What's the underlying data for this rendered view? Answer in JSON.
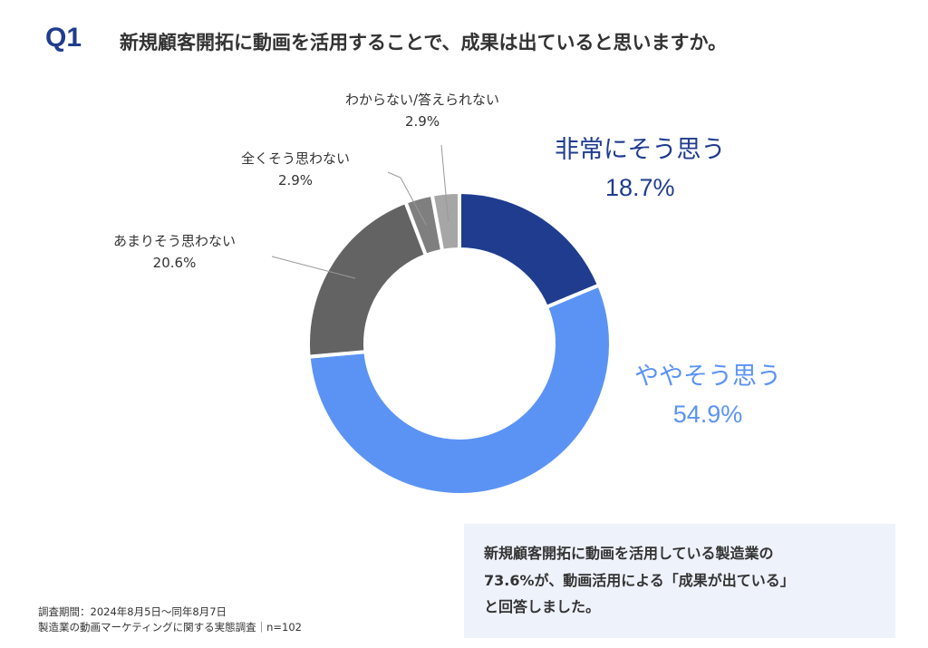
{
  "header": {
    "q_label": "Q1",
    "title": "新規顧客開拓に動画を活用することで、成果は出ていると思いますか。"
  },
  "chart_data": {
    "type": "pie",
    "donut": true,
    "categories": [
      "非常にそう思う",
      "ややそう思う",
      "あまりそう思わない",
      "全くそう思わない",
      "わからない/答えられない"
    ],
    "values": [
      18.7,
      54.9,
      20.6,
      2.9,
      2.9
    ],
    "value_labels": [
      "18.7%",
      "54.9%",
      "20.6%",
      "2.9%",
      "2.9%"
    ],
    "colors": [
      "#1f3c8f",
      "#5b93f5",
      "#636363",
      "#7f7f7f",
      "#a6a6a6"
    ],
    "label_colors": [
      "#1f3c8f",
      "#5b93f5",
      "#333333",
      "#333333",
      "#333333"
    ],
    "start": "12 o'clock",
    "direction": "clockwise"
  },
  "callout": {
    "lines": [
      "新規顧客開拓に動画を活用している製造業の",
      "73.6%が、動画活用による「成果が出ている」",
      "と回答しました。"
    ]
  },
  "footnote": {
    "lines": [
      "調査期間：2024年8月5日〜同年8月7日",
      "製造業の動画マーケティングに関する実態調査｜n=102"
    ]
  }
}
